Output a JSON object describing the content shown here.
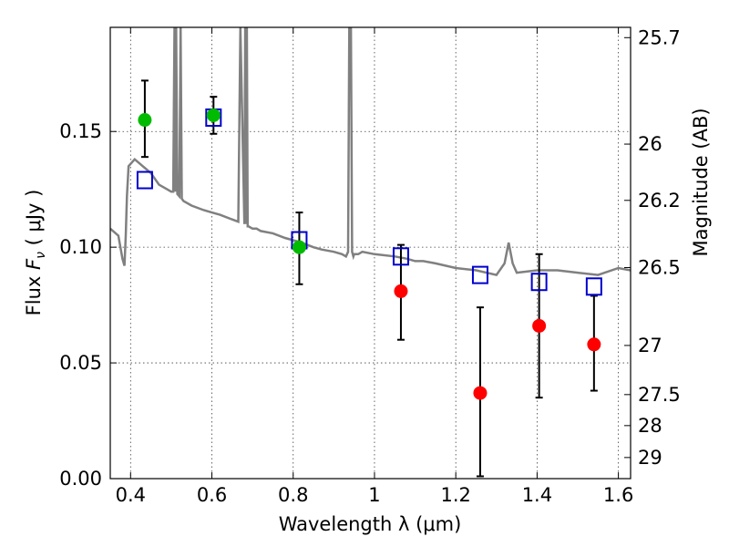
{
  "chart_data": {
    "type": "scatter",
    "xlabel": "Wavelength  λ (μm)",
    "ylabel_prefix": "Flux  ",
    "ylabel_symbol": "F",
    "ylabel_sub": "ν",
    "ylabel_suffix": "  ( μJy )",
    "ylabel_right": "Magnitude (AB)",
    "xlim": [
      0.35,
      1.63
    ],
    "ylim": [
      0.0,
      0.195
    ],
    "x_ticks": [
      0.4,
      0.6,
      0.8,
      1.0,
      1.2,
      1.4,
      1.6
    ],
    "x_tick_labels": [
      "0.4",
      "0.6",
      "0.8",
      "1",
      "1.2",
      "1.4",
      "1.6"
    ],
    "y_ticks": [
      0.0,
      0.05,
      0.1,
      0.15
    ],
    "y_tick_labels": [
      "0.00",
      "0.05",
      "0.10",
      "0.15"
    ],
    "right_ticks": [
      {
        "mag": 25.7,
        "label": "25.7"
      },
      {
        "mag": 26.0,
        "label": "26"
      },
      {
        "mag": 26.2,
        "label": "26.2"
      },
      {
        "mag": 26.5,
        "label": "26.5"
      },
      {
        "mag": 27.0,
        "label": "27"
      },
      {
        "mag": 27.5,
        "label": "27.5"
      },
      {
        "mag": 28.0,
        "label": "28"
      },
      {
        "mag": 29.0,
        "label": "29"
      }
    ],
    "grid": true,
    "colors": {
      "model": "#808080",
      "model_points": "#0000cc",
      "green_points": "#00bb00",
      "red_points": "#ff0000",
      "errorbar": "#000000"
    },
    "model_spectrum": {
      "x": [
        0.35,
        0.37,
        0.38,
        0.385,
        0.388,
        0.391,
        0.395,
        0.41,
        0.43,
        0.45,
        0.47,
        0.49,
        0.5,
        0.505,
        0.508,
        0.51,
        0.512,
        0.515,
        0.52,
        0.523,
        0.526,
        0.53,
        0.55,
        0.58,
        0.6,
        0.62,
        0.65,
        0.665,
        0.67,
        0.68,
        0.682,
        0.684,
        0.686,
        0.688,
        0.69,
        0.7,
        0.71,
        0.72,
        0.75,
        0.78,
        0.8,
        0.82,
        0.85,
        0.87,
        0.9,
        0.92,
        0.93,
        0.935,
        0.938,
        0.94,
        0.942,
        0.945,
        0.948,
        0.95,
        0.96,
        0.97,
        1.0,
        1.05,
        1.08,
        1.1,
        1.12,
        1.15,
        1.2,
        1.25,
        1.3,
        1.32,
        1.33,
        1.34,
        1.35,
        1.4,
        1.45,
        1.5,
        1.55,
        1.6,
        1.63
      ],
      "y": [
        0.108,
        0.105,
        0.095,
        0.092,
        0.105,
        0.122,
        0.135,
        0.138,
        0.135,
        0.132,
        0.127,
        0.125,
        0.124,
        0.124,
        0.195,
        0.124,
        0.195,
        0.123,
        0.122,
        0.195,
        0.121,
        0.12,
        0.118,
        0.116,
        0.115,
        0.114,
        0.112,
        0.111,
        0.195,
        0.11,
        0.195,
        0.11,
        0.195,
        0.109,
        0.109,
        0.108,
        0.108,
        0.107,
        0.106,
        0.104,
        0.103,
        0.102,
        0.1,
        0.099,
        0.098,
        0.097,
        0.096,
        0.098,
        0.195,
        0.195,
        0.195,
        0.098,
        0.096,
        0.097,
        0.097,
        0.098,
        0.097,
        0.096,
        0.095,
        0.094,
        0.094,
        0.093,
        0.091,
        0.09,
        0.088,
        0.093,
        0.102,
        0.093,
        0.089,
        0.09,
        0.09,
        0.089,
        0.088,
        0.091,
        0.09
      ]
    },
    "model_points": {
      "x": [
        0.435,
        0.604,
        0.815,
        1.065,
        1.26,
        1.405,
        1.54
      ],
      "y": [
        0.129,
        0.156,
        0.103,
        0.096,
        0.088,
        0.085,
        0.083
      ]
    },
    "green_points": {
      "x": [
        0.435,
        0.604,
        0.815
      ],
      "y": [
        0.155,
        0.157,
        0.1
      ],
      "yerr_low": [
        0.139,
        0.149,
        0.084
      ],
      "yerr_high": [
        0.172,
        0.165,
        0.115
      ]
    },
    "red_points": {
      "x": [
        1.065,
        1.26,
        1.405,
        1.54
      ],
      "y": [
        0.081,
        0.037,
        0.066,
        0.058
      ],
      "yerr_low": [
        0.06,
        0.001,
        0.035,
        0.038
      ],
      "yerr_high": [
        0.101,
        0.074,
        0.097,
        0.079
      ]
    }
  }
}
